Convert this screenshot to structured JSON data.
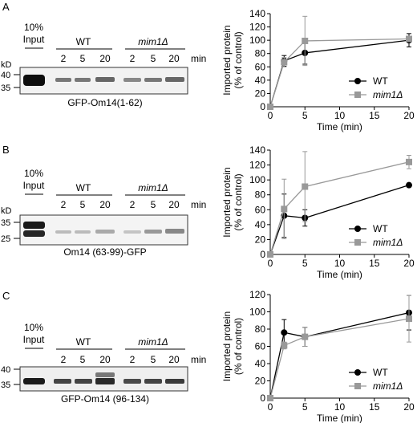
{
  "figure": {
    "panels": [
      {
        "letter": "A",
        "input_label_line1": "10%",
        "input_label_line2": "Input",
        "group_wt": "WT",
        "group_mut": "mim1Δ",
        "lane_labels": [
          "2",
          "5",
          "20",
          "2",
          "5",
          "20"
        ],
        "min_label": "min",
        "kd_label": "kD",
        "markers": [
          "40",
          "35"
        ],
        "construct": "GFP-Om14(1-62)"
      },
      {
        "letter": "B",
        "input_label_line1": "10%",
        "input_label_line2": "Input",
        "group_wt": "WT",
        "group_mut": "mim1Δ",
        "lane_labels": [
          "2",
          "5",
          "20",
          "2",
          "5",
          "20"
        ],
        "min_label": "min",
        "kd_label": "kD",
        "markers": [
          "35",
          "25"
        ],
        "construct": "Om14 (63-99)-GFP"
      },
      {
        "letter": "C",
        "input_label_line1": "10%",
        "input_label_line2": "Input",
        "group_wt": "WT",
        "group_mut": "mim1Δ",
        "lane_labels": [
          "2",
          "5",
          "20",
          "2",
          "5",
          "20"
        ],
        "min_label": "min",
        "kd_label": "kD",
        "markers": [
          "40",
          "35"
        ],
        "construct": "GFP-Om14 (96-134)"
      }
    ]
  },
  "chart_data": [
    {
      "type": "line",
      "panel": "A",
      "ylabel": "Imported protein\n(% of control)",
      "xlabel": "Time (min)",
      "xlim": [
        0,
        20
      ],
      "ylim": [
        0,
        140
      ],
      "xticks": [
        0,
        5,
        10,
        15,
        20
      ],
      "yticks": [
        0,
        20,
        40,
        60,
        80,
        100,
        120,
        140
      ],
      "legend_position": "bottom-right",
      "series": [
        {
          "name": "WT",
          "color": "#000000",
          "marker": "circle",
          "x": [
            0,
            2,
            5,
            20
          ],
          "y": [
            0,
            69,
            81,
            100
          ],
          "err": [
            0,
            8,
            17,
            10
          ]
        },
        {
          "name": "mim1Δ",
          "color": "#999999",
          "marker": "square",
          "x": [
            0,
            2,
            5,
            20
          ],
          "y": [
            0,
            67,
            99,
            102
          ],
          "err": [
            0,
            7,
            37,
            3
          ]
        }
      ]
    },
    {
      "type": "line",
      "panel": "B",
      "ylabel": "Imported protein\n(% of control)",
      "xlabel": "Time (min)",
      "xlim": [
        0,
        20
      ],
      "ylim": [
        0,
        140
      ],
      "xticks": [
        0,
        5,
        10,
        15,
        20
      ],
      "yticks": [
        0,
        20,
        40,
        60,
        80,
        100,
        120,
        140
      ],
      "legend_position": "bottom-right",
      "series": [
        {
          "name": "WT",
          "color": "#000000",
          "marker": "circle",
          "x": [
            0,
            2,
            5,
            20
          ],
          "y": [
            0,
            52,
            49,
            93
          ],
          "err": [
            0,
            29,
            11,
            0
          ]
        },
        {
          "name": "mim1Δ",
          "color": "#999999",
          "marker": "square",
          "x": [
            0,
            2,
            5,
            20
          ],
          "y": [
            0,
            61,
            91,
            124
          ],
          "err": [
            0,
            40,
            47,
            9
          ]
        }
      ]
    },
    {
      "type": "line",
      "panel": "C",
      "ylabel": "Imported protein\n(% of control)",
      "xlabel": "Time (min)",
      "xlim": [
        0,
        20
      ],
      "ylim": [
        0,
        120
      ],
      "xticks": [
        0,
        5,
        10,
        15,
        20
      ],
      "yticks": [
        0,
        20,
        40,
        60,
        80,
        100,
        120
      ],
      "legend_position": "bottom-right",
      "series": [
        {
          "name": "WT",
          "color": "#000000",
          "marker": "circle",
          "x": [
            0,
            2,
            5,
            20
          ],
          "y": [
            0,
            76,
            71,
            99
          ],
          "err": [
            0,
            15,
            11,
            20
          ]
        },
        {
          "name": "mim1Δ",
          "color": "#999999",
          "marker": "square",
          "x": [
            0,
            2,
            5,
            20
          ],
          "y": [
            0,
            61,
            71,
            92
          ],
          "err": [
            0,
            4,
            11,
            27
          ]
        }
      ]
    }
  ]
}
